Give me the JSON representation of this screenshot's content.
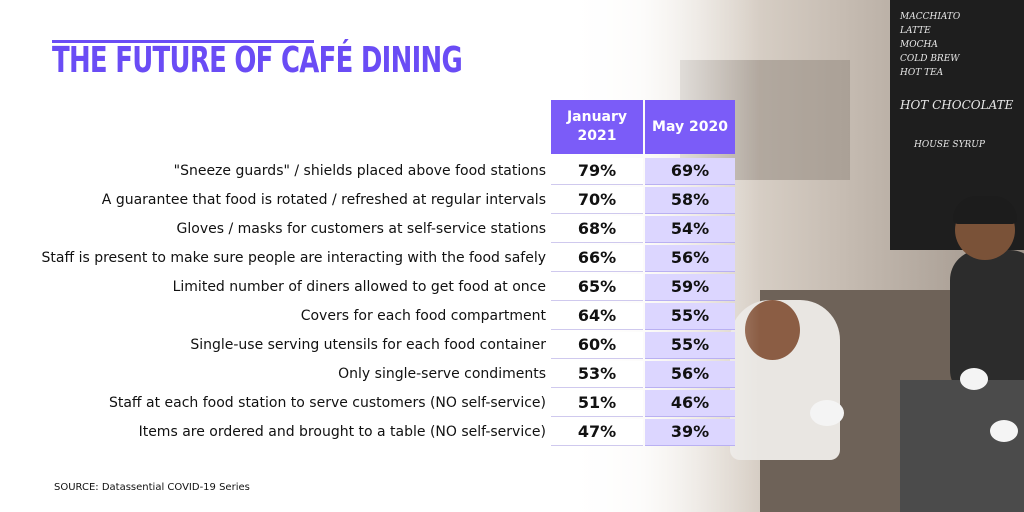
{
  "title": "THE FUTURE OF CAFÉ DINING",
  "columns": [
    "January 2021",
    "May 2020"
  ],
  "rows": [
    {
      "label": "\"Sneeze guards\" / shields placed above food stations",
      "jan2021": "79%",
      "may2020": "69%"
    },
    {
      "label": "A guarantee that food is rotated / refreshed at regular intervals",
      "jan2021": "70%",
      "may2020": "58%"
    },
    {
      "label": "Gloves / masks for customers at self-service stations",
      "jan2021": "68%",
      "may2020": "54%"
    },
    {
      "label": "Staff is present to make sure people are interacting with the food safely",
      "jan2021": "66%",
      "may2020": "56%"
    },
    {
      "label": "Limited number of diners allowed to get food at once",
      "jan2021": "65%",
      "may2020": "59%"
    },
    {
      "label": "Covers for each food compartment",
      "jan2021": "64%",
      "may2020": "55%"
    },
    {
      "label": "Single-use serving utensils for each food container",
      "jan2021": "60%",
      "may2020": "55%"
    },
    {
      "label": "Only single-serve condiments",
      "jan2021": "53%",
      "may2020": "56%"
    },
    {
      "label": "Staff at each food station to serve customers (NO self-service)",
      "jan2021": "51%",
      "may2020": "46%"
    },
    {
      "label": "Items are ordered and brought to a table (NO self-service)",
      "jan2021": "47%",
      "may2020": "39%"
    }
  ],
  "source": "SOURCE: Datassential COVID-19 Series",
  "board": {
    "line1": "MACCHIATO",
    "line2": "LATTE",
    "line3": "MOCHA",
    "line4": "COLD BREW",
    "line5": "HOT TEA",
    "line6": "HOT CHOCOLATE",
    "line7": "HOUSE SYRUP"
  },
  "colors": {
    "accent": "#6a4cf5",
    "header_bg": "#7b5cf8",
    "col2_bg": "#dcd6ff"
  },
  "chart_data": {
    "type": "table",
    "title": "THE FUTURE OF CAFÉ DINING",
    "categories": [
      "\"Sneeze guards\" / shields placed above food stations",
      "A guarantee that food is rotated / refreshed at regular intervals",
      "Gloves / masks for customers at self-service stations",
      "Staff is present to make sure people are interacting with the food safely",
      "Limited number of diners allowed to get food at once",
      "Covers for each food compartment",
      "Single-use serving utensils for each food container",
      "Only single-serve condiments",
      "Staff at each food station to serve customers (NO self-service)",
      "Items are ordered and brought to a table (NO self-service)"
    ],
    "series": [
      {
        "name": "January 2021",
        "values": [
          79,
          70,
          68,
          66,
          65,
          64,
          60,
          53,
          51,
          47
        ]
      },
      {
        "name": "May 2020",
        "values": [
          69,
          58,
          54,
          56,
          59,
          55,
          55,
          56,
          46,
          39
        ]
      }
    ]
  }
}
